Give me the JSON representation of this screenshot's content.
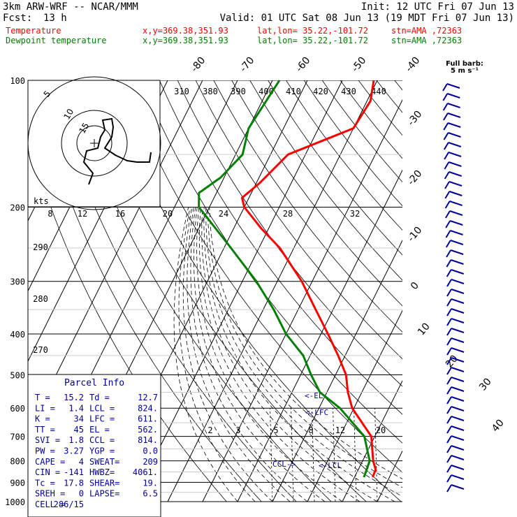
{
  "header": {
    "model": "3km ARW-WRF -- NCAR/MMM",
    "init": "Init: 12 UTC Fri 07 Jun 13",
    "fcst_label": "Fcst:",
    "fcst_value": "13 h",
    "valid": "Valid: 01 UTC Sat 08 Jun 13 (19 MDT Fri 07 Jun 13)",
    "temp_label": "Temperature",
    "dew_label": "Dewpoint temperature",
    "coord": "x,y=369.38,351.93",
    "latlon": "lat,lon= 35.22,-101.72",
    "station": "stn=AMA ,72363"
  },
  "wind_scale": {
    "title": "Full barb:",
    "units": "5 m s⁻¹"
  },
  "colors": {
    "temperature": "#ff0000",
    "dewpoint": "#008000",
    "barbs": "#000099",
    "hodograph": "#000000",
    "parcel": "#000099"
  },
  "parcel_info": {
    "title": "Parcel Info",
    "rows": [
      [
        "T  =",
        "15.2",
        "Td =",
        "12.7"
      ],
      [
        "LI =",
        "1.4",
        "LCL =",
        "824."
      ],
      [
        "K  =",
        "34",
        "LFC =",
        "611."
      ],
      [
        "TT =",
        "45",
        "EL  =",
        "562."
      ],
      [
        "SVI =",
        "1.8",
        "CCL =",
        "814."
      ],
      [
        "PW =",
        "3.27",
        "YGP =",
        "0.0"
      ],
      [
        "CAPE =",
        "4",
        "SWEAT=",
        "209"
      ],
      [
        "CIN =",
        "-141",
        "HWBZ=",
        "4061."
      ],
      [
        "Tc =",
        "17.8",
        "SHEAR=",
        "19."
      ],
      [
        "SREH =",
        "0",
        "LAPSE=",
        "6.5"
      ],
      [
        "CELL =",
        "286/15",
        "",
        ""
      ]
    ]
  },
  "chart_data": {
    "type": "skew-t",
    "y_axis": {
      "scale": "log",
      "range": [
        1000,
        100
      ],
      "ticks": [
        "100",
        "200",
        "300",
        "400",
        "500",
        "600",
        "700",
        "800",
        "900",
        "1000"
      ]
    },
    "isotherm_labels": [
      "-80",
      "-70",
      "-60",
      "-50",
      "-40",
      "-30",
      "-20",
      "-10",
      "0",
      "10",
      "20",
      "30",
      "40"
    ],
    "theta_labels": [
      "310",
      "380",
      "390",
      "400",
      "410",
      "420",
      "430",
      "440"
    ],
    "mixing_ratio_labels": [
      "8",
      "12",
      "16",
      "20",
      "24",
      "28",
      "32"
    ],
    "mixing_ratio_low_labels": [
      "2",
      "3",
      "5",
      "8",
      "12",
      "20"
    ],
    "dry_adiabat_labels": [
      "290",
      "280",
      "270"
    ],
    "series": [
      {
        "name": "Temperature",
        "points": [
          [
            100,
            -41
          ],
          [
            112,
            -39
          ],
          [
            130,
            -40
          ],
          [
            150,
            -55
          ],
          [
            175,
            -59
          ],
          [
            190,
            -62
          ],
          [
            200,
            -60
          ],
          [
            225,
            -52
          ],
          [
            250,
            -44
          ],
          [
            300,
            -33
          ],
          [
            350,
            -25
          ],
          [
            400,
            -18
          ],
          [
            450,
            -12
          ],
          [
            500,
            -7
          ],
          [
            550,
            -4
          ],
          [
            600,
            -0.5
          ],
          [
            700,
            9
          ],
          [
            800,
            13
          ],
          [
            840,
            15
          ],
          [
            875,
            15.2
          ]
        ]
      },
      {
        "name": "Dewpoint temperature",
        "points": [
          [
            100,
            -68
          ],
          [
            130,
            -70
          ],
          [
            150,
            -68
          ],
          [
            170,
            -71
          ],
          [
            185,
            -75
          ],
          [
            200,
            -73
          ],
          [
            250,
            -58
          ],
          [
            300,
            -46
          ],
          [
            350,
            -37
          ],
          [
            400,
            -30
          ],
          [
            450,
            -22
          ],
          [
            500,
            -17
          ],
          [
            550,
            -12
          ],
          [
            600,
            -4
          ],
          [
            700,
            7
          ],
          [
            800,
            12
          ],
          [
            850,
            12.5
          ],
          [
            875,
            12.7
          ]
        ]
      }
    ],
    "annotations": [
      "<-EL",
      "<-LFC",
      "CCL->",
      "<-LCL"
    ],
    "hodograph": {
      "rings": [
        "5",
        "10",
        "15"
      ],
      "units": "kts"
    }
  }
}
